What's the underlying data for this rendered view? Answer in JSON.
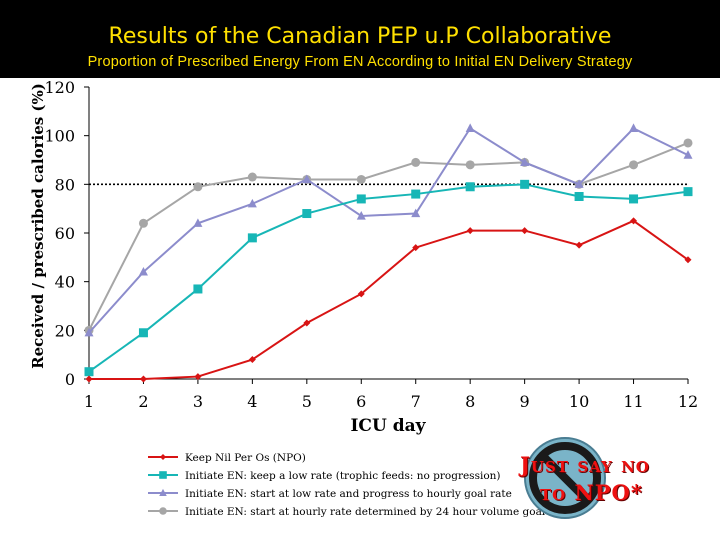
{
  "title": "Results of the Canadian PEP u.P Collaborative",
  "subtitle": "Proportion of Prescribed Energy From EN According to Initial EN Delivery Strategy",
  "badge": {
    "line1": "Just say no",
    "line2": "to NPO*"
  },
  "colors": {
    "background": "#000000",
    "title": "#ffe000",
    "plot_bg": "#ffffff"
  },
  "chart_data": {
    "type": "line",
    "xlabel": "ICU day",
    "ylabel": "Received / prescribed calories (%)",
    "x": [
      1,
      2,
      3,
      4,
      5,
      6,
      7,
      8,
      9,
      10,
      11,
      12
    ],
    "ylim": [
      0,
      120
    ],
    "yticks": [
      0,
      20,
      40,
      60,
      80,
      100,
      120
    ],
    "reference_line": {
      "y": 80,
      "style": "dotted"
    },
    "legend_position": "bottom-left",
    "grid": false,
    "series": [
      {
        "name": "Keep Nil Per Os (NPO)",
        "color": "#d81414",
        "marker": "diamond",
        "values": [
          0,
          0,
          1,
          8,
          23,
          35,
          54,
          61,
          61,
          55,
          65,
          49
        ]
      },
      {
        "name": "Initiate EN: keep a low rate (trophic feeds: no progression)",
        "color": "#17b6b6",
        "marker": "square",
        "values": [
          3,
          19,
          37,
          58,
          68,
          74,
          76,
          79,
          80,
          75,
          74,
          77
        ]
      },
      {
        "name": "Initiate EN: start at low rate and progress to hourly goal rate",
        "color": "#8c8ccc",
        "marker": "triangle",
        "values": [
          19,
          44,
          64,
          72,
          82,
          67,
          68,
          103,
          89,
          80,
          103,
          92
        ]
      },
      {
        "name": "Initiate EN: start at hourly rate determined by 24 hour volume goal",
        "color": "#a6a6a6",
        "marker": "circle",
        "values": [
          20,
          64,
          79,
          83,
          82,
          82,
          89,
          88,
          89,
          80,
          88,
          97
        ]
      }
    ]
  }
}
